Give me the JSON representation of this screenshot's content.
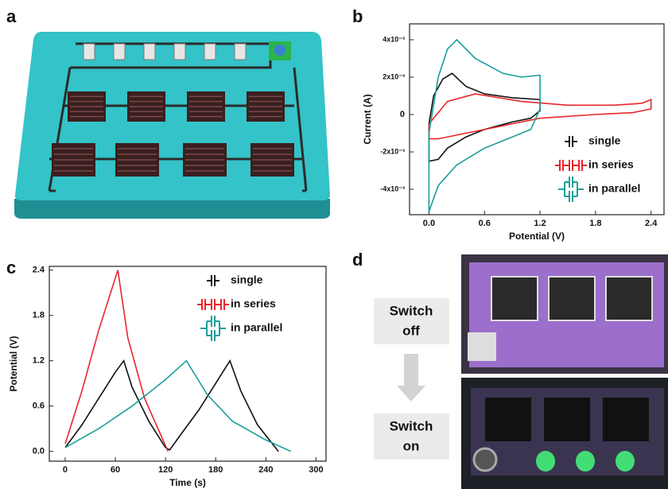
{
  "panel_labels": [
    "a",
    "b",
    "c",
    "d"
  ],
  "switch_labels": [
    [
      "Switch",
      "off"
    ],
    [
      "Switch",
      "on"
    ]
  ],
  "chart_data": [
    {
      "type": "line",
      "xlabel": "Potential (V)",
      "ylabel": "Current (A)",
      "xlim": [
        -0.21,
        2.54
      ],
      "ylim": [
        -0.00536,
        0.00485
      ],
      "xticks": [
        {
          "value": 0,
          "label": "0.0"
        },
        0.6,
        1.2,
        1.8,
        2.4
      ],
      "yticks": [
        {
          "value": 0.004,
          "label": "4x10⁻³"
        },
        {
          "value": 0.002,
          "label": "2x10⁻³"
        },
        0,
        {
          "value": -0.002,
          "label": "-2x10⁻³"
        },
        {
          "value": -0.004,
          "label": "-4x10⁻³"
        }
      ],
      "legend": "lower right",
      "series": [
        {
          "name": "single",
          "color": "#111111",
          "x": [
            0,
            0.05,
            0.15,
            0.25,
            0.4,
            0.6,
            0.9,
            1.2,
            1.2,
            1.1,
            0.9,
            0.6,
            0.4,
            0.2,
            0.1,
            0,
            0
          ],
          "values": [
            -0.0005,
            0.001,
            0.0019,
            0.0022,
            0.0015,
            0.0011,
            0.0009,
            0.0008,
            0.0002,
            -0.0002,
            -0.0004,
            -0.0008,
            -0.0012,
            -0.0018,
            -0.0024,
            -0.0025,
            -0.0005
          ]
        },
        {
          "name": "in series",
          "color": "#e8262a",
          "x": [
            0,
            0.2,
            0.5,
            1.0,
            1.5,
            2.0,
            2.3,
            2.4,
            2.4,
            2.2,
            1.8,
            1.2,
            0.8,
            0.4,
            0.1,
            0,
            0
          ],
          "values": [
            -0.0005,
            0.0007,
            0.0011,
            0.0007,
            0.0005,
            0.0005,
            0.0006,
            0.0008,
            0.0003,
            0.0001,
            0,
            -0.0002,
            -0.0006,
            -0.001,
            -0.0013,
            -0.0013,
            -0.0005
          ]
        },
        {
          "name": "in parallel",
          "color": "#1a9e9a",
          "x": [
            0,
            0.1,
            0.2,
            0.3,
            0.5,
            0.8,
            1.0,
            1.2,
            1.2,
            1.1,
            0.9,
            0.6,
            0.3,
            0.1,
            0,
            0
          ],
          "values": [
            -0.001,
            0.002,
            0.0035,
            0.004,
            0.003,
            0.0022,
            0.002,
            0.0021,
            0.0003,
            -0.0008,
            -0.0012,
            -0.0018,
            -0.0027,
            -0.0038,
            -0.0052,
            -0.001
          ]
        }
      ]
    },
    {
      "type": "line",
      "xlabel": "Time (s)",
      "ylabel": "Potential (V)",
      "xlim": [
        -19,
        312
      ],
      "ylim": [
        -0.13,
        2.45
      ],
      "xticks": [
        0,
        60,
        120,
        180,
        240,
        300
      ],
      "yticks": [
        {
          "value": 0,
          "label": "0.0"
        },
        0.6,
        1.2,
        1.8,
        2.4
      ],
      "legend": "upper right",
      "series": [
        {
          "name": "single",
          "color": "#111111",
          "x": [
            0,
            20,
            40,
            60,
            70,
            80,
            100,
            120,
            125,
            140,
            160,
            180,
            197,
            210,
            230,
            255
          ],
          "values": [
            0.05,
            0.35,
            0.7,
            1.05,
            1.2,
            0.85,
            0.4,
            0.05,
            0.02,
            0.25,
            0.55,
            0.9,
            1.2,
            0.8,
            0.35,
            0
          ]
        },
        {
          "name": "in series",
          "color": "#e8262a",
          "x": [
            0,
            20,
            40,
            63,
            75,
            95,
            123
          ],
          "values": [
            0.1,
            0.8,
            1.6,
            2.4,
            1.5,
            0.7,
            0
          ]
        },
        {
          "name": "in parallel",
          "color": "#1a9e9a",
          "x": [
            0,
            40,
            80,
            120,
            145,
            170,
            200,
            240,
            270
          ],
          "values": [
            0.05,
            0.3,
            0.6,
            0.95,
            1.2,
            0.75,
            0.4,
            0.15,
            0
          ]
        }
      ]
    }
  ]
}
